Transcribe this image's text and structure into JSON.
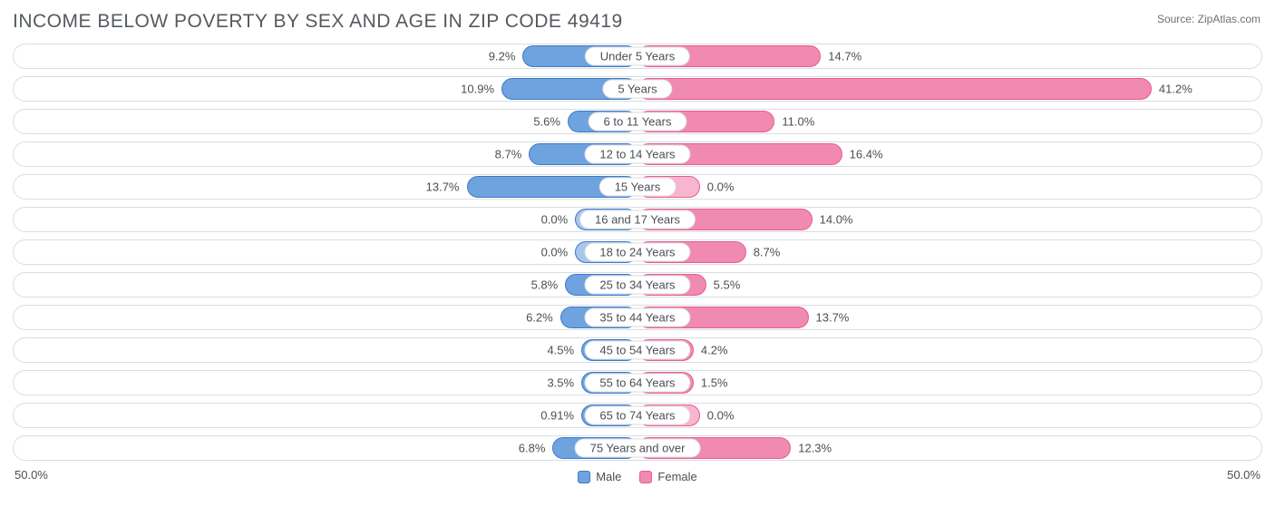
{
  "title": "INCOME BELOW POVERTY BY SEX AND AGE IN ZIP CODE 49419",
  "source": "Source: ZipAtlas.com",
  "chart": {
    "type": "diverging-bar",
    "axis_max": 50.0,
    "axis_left_label": "50.0%",
    "axis_right_label": "50.0%",
    "colors": {
      "male_fill": "#6ea3e0",
      "male_stroke": "#3d79c7",
      "male_light": "#a9c6ec",
      "female_fill": "#f18ab0",
      "female_stroke": "#e85a93",
      "female_light": "#f7b6ce",
      "track_border": "#d9dde0",
      "text": "#4a4f54",
      "background": "#ffffff"
    },
    "legend": [
      {
        "label": "Male",
        "fill": "#6ea3e0",
        "stroke": "#3d79c7"
      },
      {
        "label": "Female",
        "fill": "#f18ab0",
        "stroke": "#e85a93"
      }
    ],
    "rows": [
      {
        "category": "Under 5 Years",
        "male": 9.2,
        "female": 14.7,
        "male_label": "9.2%",
        "female_label": "14.7%",
        "female_light": false
      },
      {
        "category": "5 Years",
        "male": 10.9,
        "female": 41.2,
        "male_label": "10.9%",
        "female_label": "41.2%",
        "female_light": false
      },
      {
        "category": "6 to 11 Years",
        "male": 5.6,
        "female": 11.0,
        "male_label": "5.6%",
        "female_label": "11.0%",
        "female_light": false
      },
      {
        "category": "12 to 14 Years",
        "male": 8.7,
        "female": 16.4,
        "male_label": "8.7%",
        "female_label": "16.4%",
        "female_light": false
      },
      {
        "category": "15 Years",
        "male": 13.7,
        "female": 0.0,
        "male_label": "13.7%",
        "female_label": "0.0%",
        "female_light": true,
        "female_stub": 5.0
      },
      {
        "category": "16 and 17 Years",
        "male": 0.0,
        "female": 14.0,
        "male_label": "0.0%",
        "female_label": "14.0%",
        "male_light": true,
        "male_stub": 5.0
      },
      {
        "category": "18 to 24 Years",
        "male": 0.0,
        "female": 8.7,
        "male_label": "0.0%",
        "female_label": "8.7%",
        "male_light": true,
        "male_stub": 5.0
      },
      {
        "category": "25 to 34 Years",
        "male": 5.8,
        "female": 5.5,
        "male_label": "5.8%",
        "female_label": "5.5%",
        "female_light": false
      },
      {
        "category": "35 to 44 Years",
        "male": 6.2,
        "female": 13.7,
        "male_label": "6.2%",
        "female_label": "13.7%",
        "female_light": false
      },
      {
        "category": "45 to 54 Years",
        "male": 4.5,
        "female": 4.2,
        "male_label": "4.5%",
        "female_label": "4.2%",
        "female_light": false
      },
      {
        "category": "55 to 64 Years",
        "male": 3.5,
        "female": 1.5,
        "male_label": "3.5%",
        "female_label": "1.5%",
        "female_light": false
      },
      {
        "category": "65 to 74 Years",
        "male": 0.91,
        "female": 0.0,
        "male_label": "0.91%",
        "female_label": "0.0%",
        "female_light": true,
        "female_stub": 5.0
      },
      {
        "category": "75 Years and over",
        "male": 6.8,
        "female": 12.3,
        "male_label": "6.8%",
        "female_label": "12.3%",
        "female_light": false
      }
    ],
    "stub_min_pct": 9.0,
    "bar_label_fontsize": 13,
    "title_fontsize": 21
  }
}
